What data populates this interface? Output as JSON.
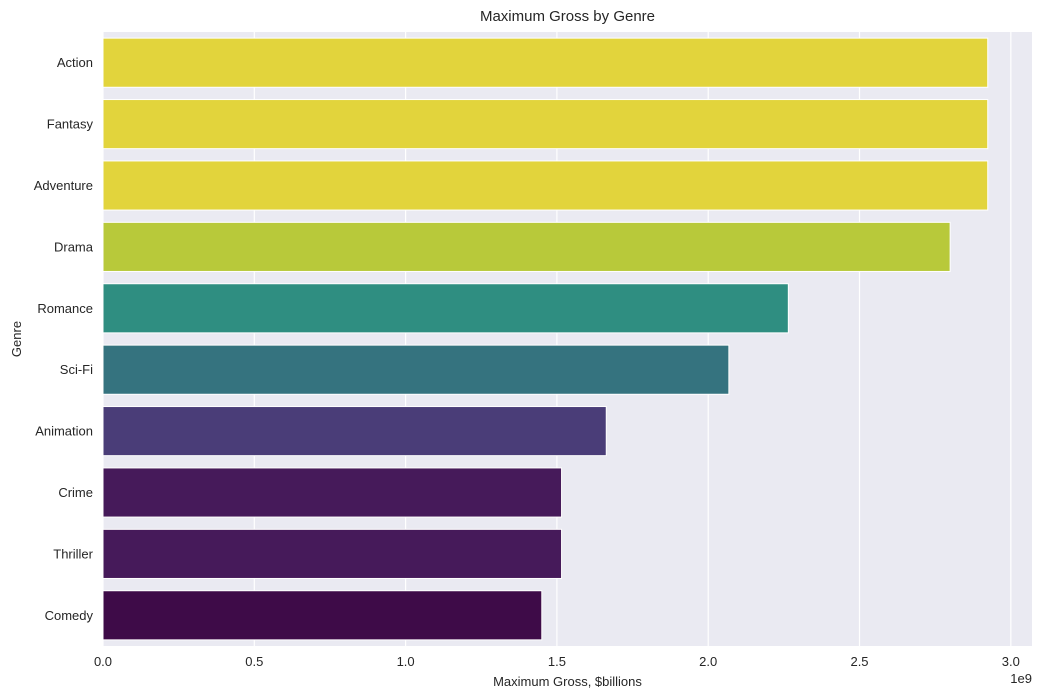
{
  "chart_data": {
    "type": "bar",
    "orientation": "horizontal",
    "title": "Maximum Gross by Genre",
    "xlabel": "Maximum Gross, $billions",
    "ylabel": "Genre",
    "offset_text": "1e9",
    "categories": [
      "Action",
      "Fantasy",
      "Adventure",
      "Drama",
      "Romance",
      "Sci-Fi",
      "Animation",
      "Crime",
      "Thriller",
      "Comedy"
    ],
    "values": [
      2923706026,
      2923706026,
      2923706026,
      2799439100,
      2264743305,
      2068223624,
      1663075401,
      1515341399,
      1515341399,
      1450026933
    ],
    "colors": [
      "#e2d43c",
      "#e2d43c",
      "#e2d43c",
      "#b8c93a",
      "#2f8e81",
      "#35737f",
      "#4a3d78",
      "#461a5a",
      "#461a5a",
      "#3e0b48"
    ],
    "xlim": [
      0,
      3070000000
    ],
    "xticks": [
      0,
      500000000,
      1000000000,
      1500000000,
      2000000000,
      2500000000,
      3000000000
    ],
    "xtick_labels": [
      "0.0",
      "0.5",
      "1.0",
      "1.5",
      "2.0",
      "2.5",
      "3.0"
    ],
    "grid": true,
    "style": {
      "plot_background": "#eaeaf2",
      "grid_color": "#ffffff",
      "bar_edge": "#ffffff"
    }
  }
}
